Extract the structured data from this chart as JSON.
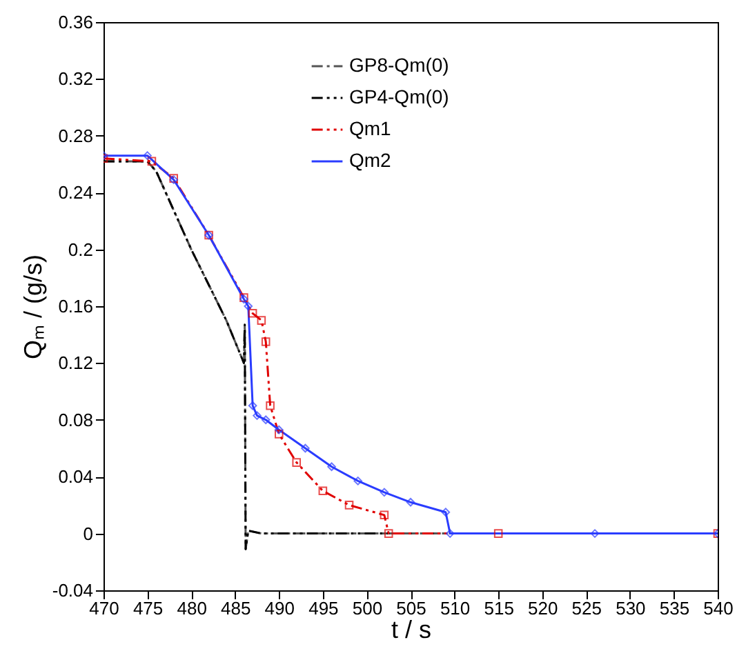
{
  "chart_data": {
    "type": "line",
    "xlabel": "t / s",
    "ylabel": "Qₘ / (g/s)",
    "xlim": [
      470,
      540
    ],
    "xticks": [
      470,
      475,
      480,
      485,
      490,
      495,
      500,
      505,
      510,
      515,
      520,
      525,
      530,
      535,
      540
    ],
    "ylim": [
      -0.04,
      0.36
    ],
    "yticks": [
      -0.04,
      {
        "value": 0,
        "label": "0"
      },
      0.04,
      0.08,
      0.12,
      0.16,
      {
        "value": 0.2,
        "label": "0.2"
      },
      0.24,
      0.28,
      0.32,
      0.36
    ],
    "grid": false,
    "legend": "top",
    "series": [
      {
        "name": "GP8-Qm(0)",
        "color": "#555555",
        "line_style": "dashdot",
        "marker": "none",
        "x": [
          470,
          475,
          476,
          480,
          484,
          486,
          486.1,
          486.2,
          486.5,
          488,
          540
        ],
        "values": [
          0.262,
          0.262,
          0.255,
          0.2,
          0.15,
          0.12,
          0.147,
          -0.011,
          0.002,
          0,
          0
        ]
      },
      {
        "name": "GP4-Qm(0)",
        "color": "#000000",
        "line_style": "dashdotdot",
        "marker": "none",
        "x": [
          470,
          475,
          476,
          480,
          484,
          486,
          486.1,
          486.2,
          486.5,
          488,
          540
        ],
        "values": [
          0.262,
          0.262,
          0.255,
          0.2,
          0.15,
          0.12,
          0.147,
          -0.011,
          0.002,
          0,
          0
        ]
      },
      {
        "name": "Qm1",
        "color": "#e00000",
        "line_style": "dashdotdot",
        "marker": "square",
        "x": [
          470,
          475.5,
          478,
          482,
          486,
          487,
          488,
          488.5,
          489,
          490,
          492,
          495,
          498,
          502,
          502.5,
          515,
          540
        ],
        "values": [
          0.264,
          0.262,
          0.25,
          0.21,
          0.166,
          0.155,
          0.15,
          0.135,
          0.09,
          0.07,
          0.05,
          0.03,
          0.02,
          0.013,
          0,
          0,
          0
        ]
      },
      {
        "name": "Qm2",
        "color": "#2a3cff",
        "line_style": "solid",
        "marker": "diamond",
        "x": [
          470,
          475,
          478,
          482,
          486,
          486.5,
          487,
          487.5,
          488.5,
          490,
          493,
          496,
          499,
          502,
          505,
          509,
          509.5,
          526,
          540
        ],
        "values": [
          0.266,
          0.266,
          0.249,
          0.21,
          0.165,
          0.16,
          0.09,
          0.083,
          0.08,
          0.073,
          0.06,
          0.047,
          0.037,
          0.029,
          0.022,
          0.015,
          0,
          0,
          0
        ]
      }
    ]
  }
}
